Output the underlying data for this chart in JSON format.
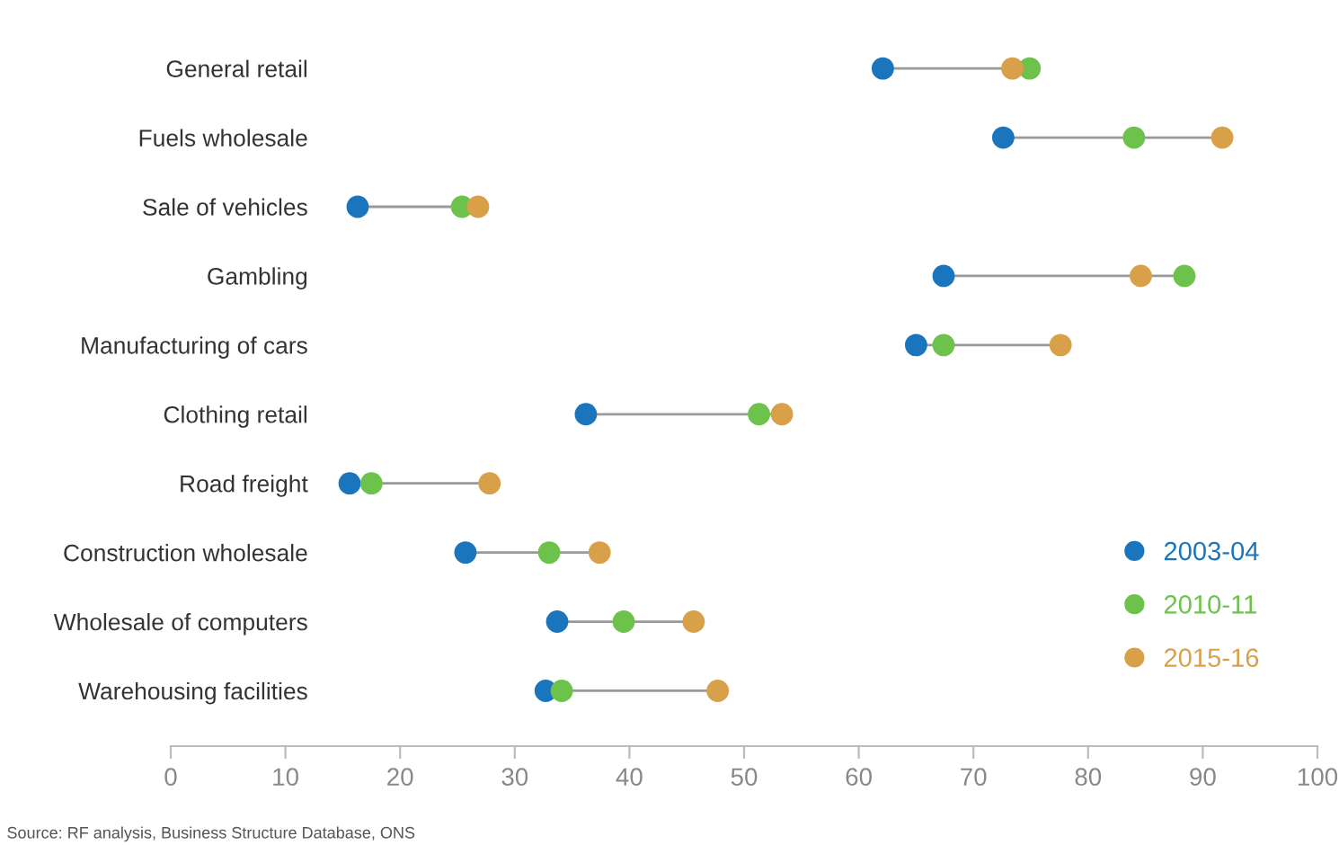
{
  "chart_data": {
    "type": "scatter",
    "orientation": "horizontal",
    "categories": [
      "General retail",
      "Fuels wholesale",
      "Sale of vehicles",
      "Gambling",
      "Manufacturing of cars",
      "Clothing retail",
      "Road freight",
      "Construction wholesale",
      "Wholesale of computers",
      "Warehousing facilities"
    ],
    "series": [
      {
        "name": "2003-04",
        "color": "#1b75bc",
        "values": [
          62.1,
          72.6,
          16.3,
          67.4,
          65.0,
          36.2,
          15.6,
          25.7,
          33.7,
          32.7
        ]
      },
      {
        "name": "2010-11",
        "color": "#6cc24a",
        "values": [
          74.9,
          84.0,
          25.4,
          88.4,
          67.4,
          51.3,
          17.5,
          33.0,
          39.5,
          34.1
        ]
      },
      {
        "name": "2015-16",
        "color": "#d9a04a",
        "values": [
          73.4,
          91.7,
          26.8,
          84.6,
          77.6,
          53.3,
          27.8,
          37.4,
          45.6,
          47.7
        ]
      }
    ],
    "xlim": [
      0,
      100
    ],
    "xticks": [
      0,
      10,
      20,
      30,
      40,
      50,
      60,
      70,
      80,
      90,
      100
    ],
    "marker": "circle",
    "grid": false,
    "legend": "bottom right",
    "annotations": [
      "Source: RF analysis, Business Structure Database, ONS"
    ]
  }
}
